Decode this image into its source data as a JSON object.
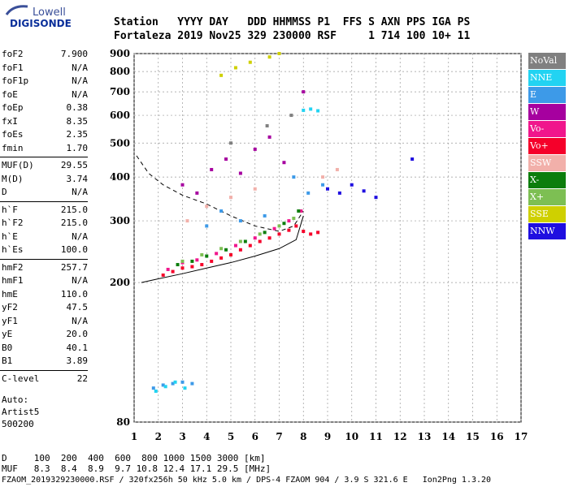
{
  "logo": {
    "line1": "Lowell",
    "line2": "DIGISONDE"
  },
  "header": {
    "row1": "Station   YYYY DAY   DDD HHMMSS P1  FFS S AXN PPS IGA PS",
    "row2": "Fortaleza 2019 Nov25 329 230000 RSF     1 714 100 10+ 11"
  },
  "params_group1": [
    {
      "label": "foF2",
      "value": "7.900"
    },
    {
      "label": "foF1",
      "value": "N/A"
    },
    {
      "label": "foF1p",
      "value": "N/A"
    },
    {
      "label": "foE",
      "value": "N/A"
    },
    {
      "label": "foEp",
      "value": "0.38"
    },
    {
      "label": "fxI",
      "value": "8.35"
    },
    {
      "label": "foEs",
      "value": "2.35"
    },
    {
      "label": "fmin",
      "value": "1.70"
    }
  ],
  "params_group2": [
    {
      "label": "MUF(D)",
      "value": "29.55"
    },
    {
      "label": "M(D)",
      "value": "3.74"
    },
    {
      "label": "D",
      "value": "N/A"
    }
  ],
  "params_group3": [
    {
      "label": "h`F",
      "value": "215.0"
    },
    {
      "label": "h`F2",
      "value": "215.0"
    },
    {
      "label": "h`E",
      "value": "N/A"
    },
    {
      "label": "h`Es",
      "value": "100.0"
    }
  ],
  "params_group4": [
    {
      "label": "hmF2",
      "value": "257.7"
    },
    {
      "label": "hmF1",
      "value": "N/A"
    },
    {
      "label": "hmE",
      "value": "110.0"
    },
    {
      "label": "yF2",
      "value": "47.5"
    },
    {
      "label": "yF1",
      "value": "N/A"
    },
    {
      "label": "yE",
      "value": "20.0"
    },
    {
      "label": "B0",
      "value": "40.1"
    },
    {
      "label": "B1",
      "value": "3.89"
    }
  ],
  "params_group5": [
    {
      "label": "C-level",
      "value": "22"
    }
  ],
  "auto": {
    "line1": "Auto:",
    "line2": "Artist5",
    "line3": "500200"
  },
  "legend": [
    {
      "label": "NoVal",
      "color": "#808080"
    },
    {
      "label": "NNE",
      "color": "#22d3f2"
    },
    {
      "label": "E",
      "color": "#3d9ae8"
    },
    {
      "label": "W",
      "color": "#a6009f"
    },
    {
      "label": "Vo-",
      "color": "#f0168c"
    },
    {
      "label": "Vo+",
      "color": "#f5002a"
    },
    {
      "label": "SSW",
      "color": "#f2b0aa"
    },
    {
      "label": "X-",
      "color": "#0c7d0c"
    },
    {
      "label": "X+",
      "color": "#7dbf53"
    },
    {
      "label": "SSE",
      "color": "#cfd000"
    },
    {
      "label": "NNW",
      "color": "#1f0ee0"
    }
  ],
  "bottom": {
    "d_row": "D     100  200  400  600  800 1000 1500 3000 [km]",
    "muf_row": "MUF   8.3  8.4  8.9  9.7 10.8 12.4 17.1 29.5 [MHz]"
  },
  "footer": {
    "text": "FZAOM_2019329230000.RSF / 320fx256h 50 kHz 5.0 km / DPS-4 FZAOM 904 / 3.9 S 321.6 E   Ion2Png 1.3.20"
  },
  "chart_data": {
    "type": "scatter",
    "x_ticks": [
      1,
      2,
      3,
      4,
      5,
      6,
      7,
      8,
      9,
      10,
      11,
      12,
      13,
      14,
      15,
      16,
      17
    ],
    "y_ticks": [
      80,
      200,
      300,
      400,
      500,
      600,
      700,
      800,
      900
    ],
    "xlim": [
      1,
      17
    ],
    "ylim": [
      80,
      900
    ],
    "y_scale": "log",
    "grid": true,
    "legend_position": "right",
    "series": [
      {
        "name": "Vo+",
        "color": "#f5002a",
        "x": [
          2.2,
          2.6,
          3.0,
          3.4,
          3.8,
          4.2,
          4.6,
          5.0,
          5.4,
          5.8,
          6.2,
          6.6,
          7.0,
          7.4,
          7.7,
          8.0,
          8.3,
          8.6
        ],
        "y": [
          210,
          215,
          220,
          222,
          225,
          230,
          235,
          240,
          248,
          255,
          262,
          268,
          275,
          282,
          290,
          280,
          275,
          278
        ]
      },
      {
        "name": "Vo-",
        "color": "#f0168c",
        "x": [
          2.4,
          3.0,
          3.6,
          4.4,
          5.2,
          6.0,
          6.8,
          7.4,
          7.9
        ],
        "y": [
          218,
          228,
          232,
          242,
          255,
          268,
          285,
          300,
          320
        ]
      },
      {
        "name": "X-",
        "color": "#0c7d0c",
        "x": [
          2.8,
          3.4,
          4.0,
          4.8,
          5.6,
          6.4,
          7.2,
          7.8
        ],
        "y": [
          225,
          230,
          238,
          248,
          262,
          278,
          295,
          320
        ]
      },
      {
        "name": "X+",
        "color": "#7dbf53",
        "x": [
          3.0,
          3.8,
          4.6,
          5.4,
          6.2,
          7.0,
          7.6
        ],
        "y": [
          230,
          240,
          250,
          262,
          275,
          290,
          305
        ]
      },
      {
        "name": "E",
        "color": "#3d9ae8",
        "x": [
          1.8,
          2.2,
          2.6,
          3.0,
          3.4,
          4.0,
          4.6,
          5.4,
          6.4,
          7.6,
          8.2,
          8.8
        ],
        "y": [
          100,
          102,
          103,
          104,
          103,
          290,
          320,
          300,
          310,
          400,
          360,
          380
        ]
      },
      {
        "name": "NNE",
        "color": "#22d3f2",
        "x": [
          1.9,
          2.3,
          2.7,
          3.1,
          8.0,
          8.3,
          8.6
        ],
        "y": [
          98,
          101,
          104,
          100,
          620,
          625,
          618
        ]
      },
      {
        "name": "NNW",
        "color": "#1f0ee0",
        "x": [
          9.0,
          9.5,
          10.0,
          10.5,
          11.0,
          12.5
        ],
        "y": [
          370,
          360,
          380,
          365,
          350,
          450
        ]
      },
      {
        "name": "W",
        "color": "#a6009f",
        "x": [
          3.0,
          3.6,
          4.2,
          4.8,
          5.4,
          6.0,
          6.6,
          7.2,
          8.0
        ],
        "y": [
          380,
          360,
          420,
          450,
          410,
          480,
          520,
          440,
          700
        ]
      },
      {
        "name": "SSW",
        "color": "#f2b0aa",
        "x": [
          3.2,
          4.0,
          5.0,
          6.0,
          8.8,
          9.4
        ],
        "y": [
          300,
          330,
          350,
          370,
          400,
          420
        ]
      },
      {
        "name": "SSE",
        "color": "#cfd000",
        "x": [
          4.6,
          5.2,
          5.8,
          6.6,
          7.0
        ],
        "y": [
          780,
          820,
          850,
          880,
          900
        ]
      },
      {
        "name": "NoVal",
        "color": "#808080",
        "x": [
          5.0,
          6.5,
          7.5
        ],
        "y": [
          500,
          560,
          600
        ]
      }
    ],
    "trace_lower": {
      "x": [
        1.3,
        2.0,
        3.0,
        4.0,
        5.0,
        6.0,
        7.0,
        7.7,
        8.0
      ],
      "y": [
        200,
        205,
        212,
        220,
        228,
        238,
        250,
        265,
        310
      ]
    },
    "trace_dashed": {
      "x": [
        1.1,
        1.6,
        2.2,
        3.0,
        4.0,
        5.0,
        6.0,
        7.0,
        7.6,
        8.0
      ],
      "y": [
        460,
        410,
        380,
        355,
        335,
        310,
        290,
        280,
        290,
        320
      ]
    }
  }
}
